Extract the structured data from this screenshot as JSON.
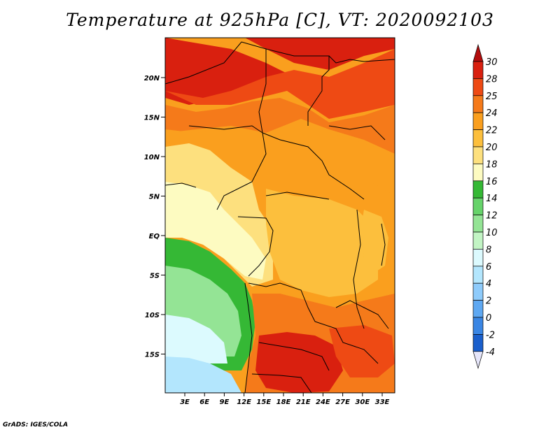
{
  "title": "Temperature at 925hPa [C], VT: 2020092103",
  "credit": "GrADS: IGES/COLA",
  "lat_ticks": [
    "20N",
    "15N",
    "10N",
    "5N",
    "EQ",
    "5S",
    "10S",
    "15S"
  ],
  "lon_ticks": [
    "3E",
    "6E",
    "9E",
    "12E",
    "15E",
    "18E",
    "21E",
    "24E",
    "27E",
    "30E",
    "33E"
  ],
  "colorbar": {
    "labels": [
      "30",
      "28",
      "25",
      "24",
      "22",
      "20",
      "18",
      "16",
      "14",
      "12",
      "10",
      "8",
      "6",
      "4",
      "2",
      "0",
      "-2",
      "-4"
    ],
    "colors": [
      "#d9200f",
      "#ee4a14",
      "#f57a1a",
      "#fa9f1e",
      "#fcbf3d",
      "#fde07e",
      "#fdfbc1",
      "#35b835",
      "#66d36a",
      "#94e495",
      "#c2f4c4",
      "#dcfafe",
      "#b3e6fd",
      "#8ecbfb",
      "#5ea8f2",
      "#3a86e4",
      "#1a5fcc",
      "#0c3aa8",
      "#07207a"
    ],
    "top_arrow_color": "#b30d0d",
    "bottom_arrow_color": "#e6e6fa"
  },
  "regions": [
    {
      "name": "sahara-hot",
      "color": "#d9200f"
    },
    {
      "name": "sahel-warm",
      "color": "#ee4a14"
    },
    {
      "name": "savanna-orange",
      "color": "#f57a1a"
    },
    {
      "name": "central-orange",
      "color": "#fa9f1e"
    },
    {
      "name": "congo-basin",
      "color": "#fcbf3d"
    },
    {
      "name": "coast-pale",
      "color": "#fde07e"
    },
    {
      "name": "atlantic-cream",
      "color": "#fdfbc1"
    },
    {
      "name": "ocean-green",
      "color": "#35b835"
    },
    {
      "name": "ocean-lightgreen",
      "color": "#94e495"
    },
    {
      "name": "ocean-cyan",
      "color": "#dcfafe"
    },
    {
      "name": "ocean-blue",
      "color": "#b3e6fd"
    },
    {
      "name": "kalahari-hot",
      "color": "#d9200f"
    }
  ]
}
